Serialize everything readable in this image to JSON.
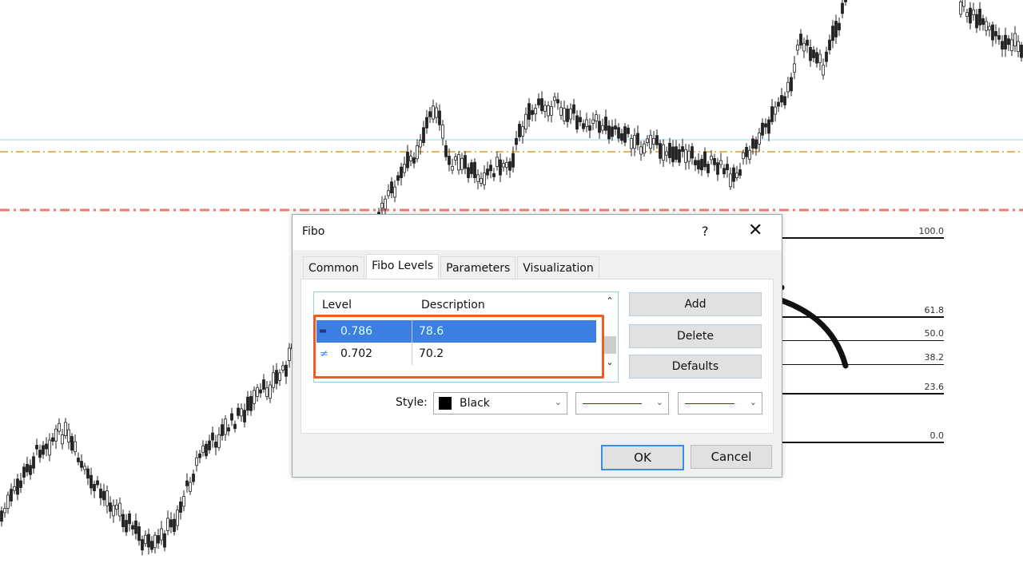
{
  "dialog": {
    "title": "Fibo",
    "help_label": "?",
    "close_label": "✕",
    "tabs": [
      {
        "label": "Common"
      },
      {
        "label": "Fibo Levels",
        "active": true
      },
      {
        "label": "Parameters"
      },
      {
        "label": "Visualization"
      }
    ],
    "list": {
      "columns": [
        "Level",
        "Description"
      ],
      "rows": [
        {
          "glyph": "═",
          "level": "0.786",
          "description": "78.6",
          "selected": true
        },
        {
          "glyph": "≠",
          "level": "0.702",
          "description": "70.2",
          "selected": false
        }
      ]
    },
    "buttons": {
      "add": "Add",
      "delete": "Delete",
      "defaults": "Defaults",
      "ok": "OK",
      "cancel": "Cancel"
    },
    "style": {
      "label": "Style:",
      "color": "Black",
      "color_hex": "#000000",
      "line_color_hex": "#c00000"
    }
  },
  "chart": {
    "fibo_levels": [
      "100.0",
      "61.8",
      "50.0",
      "38.2",
      "23.6",
      "0.0"
    ],
    "highlight_color": "#f15a24"
  }
}
